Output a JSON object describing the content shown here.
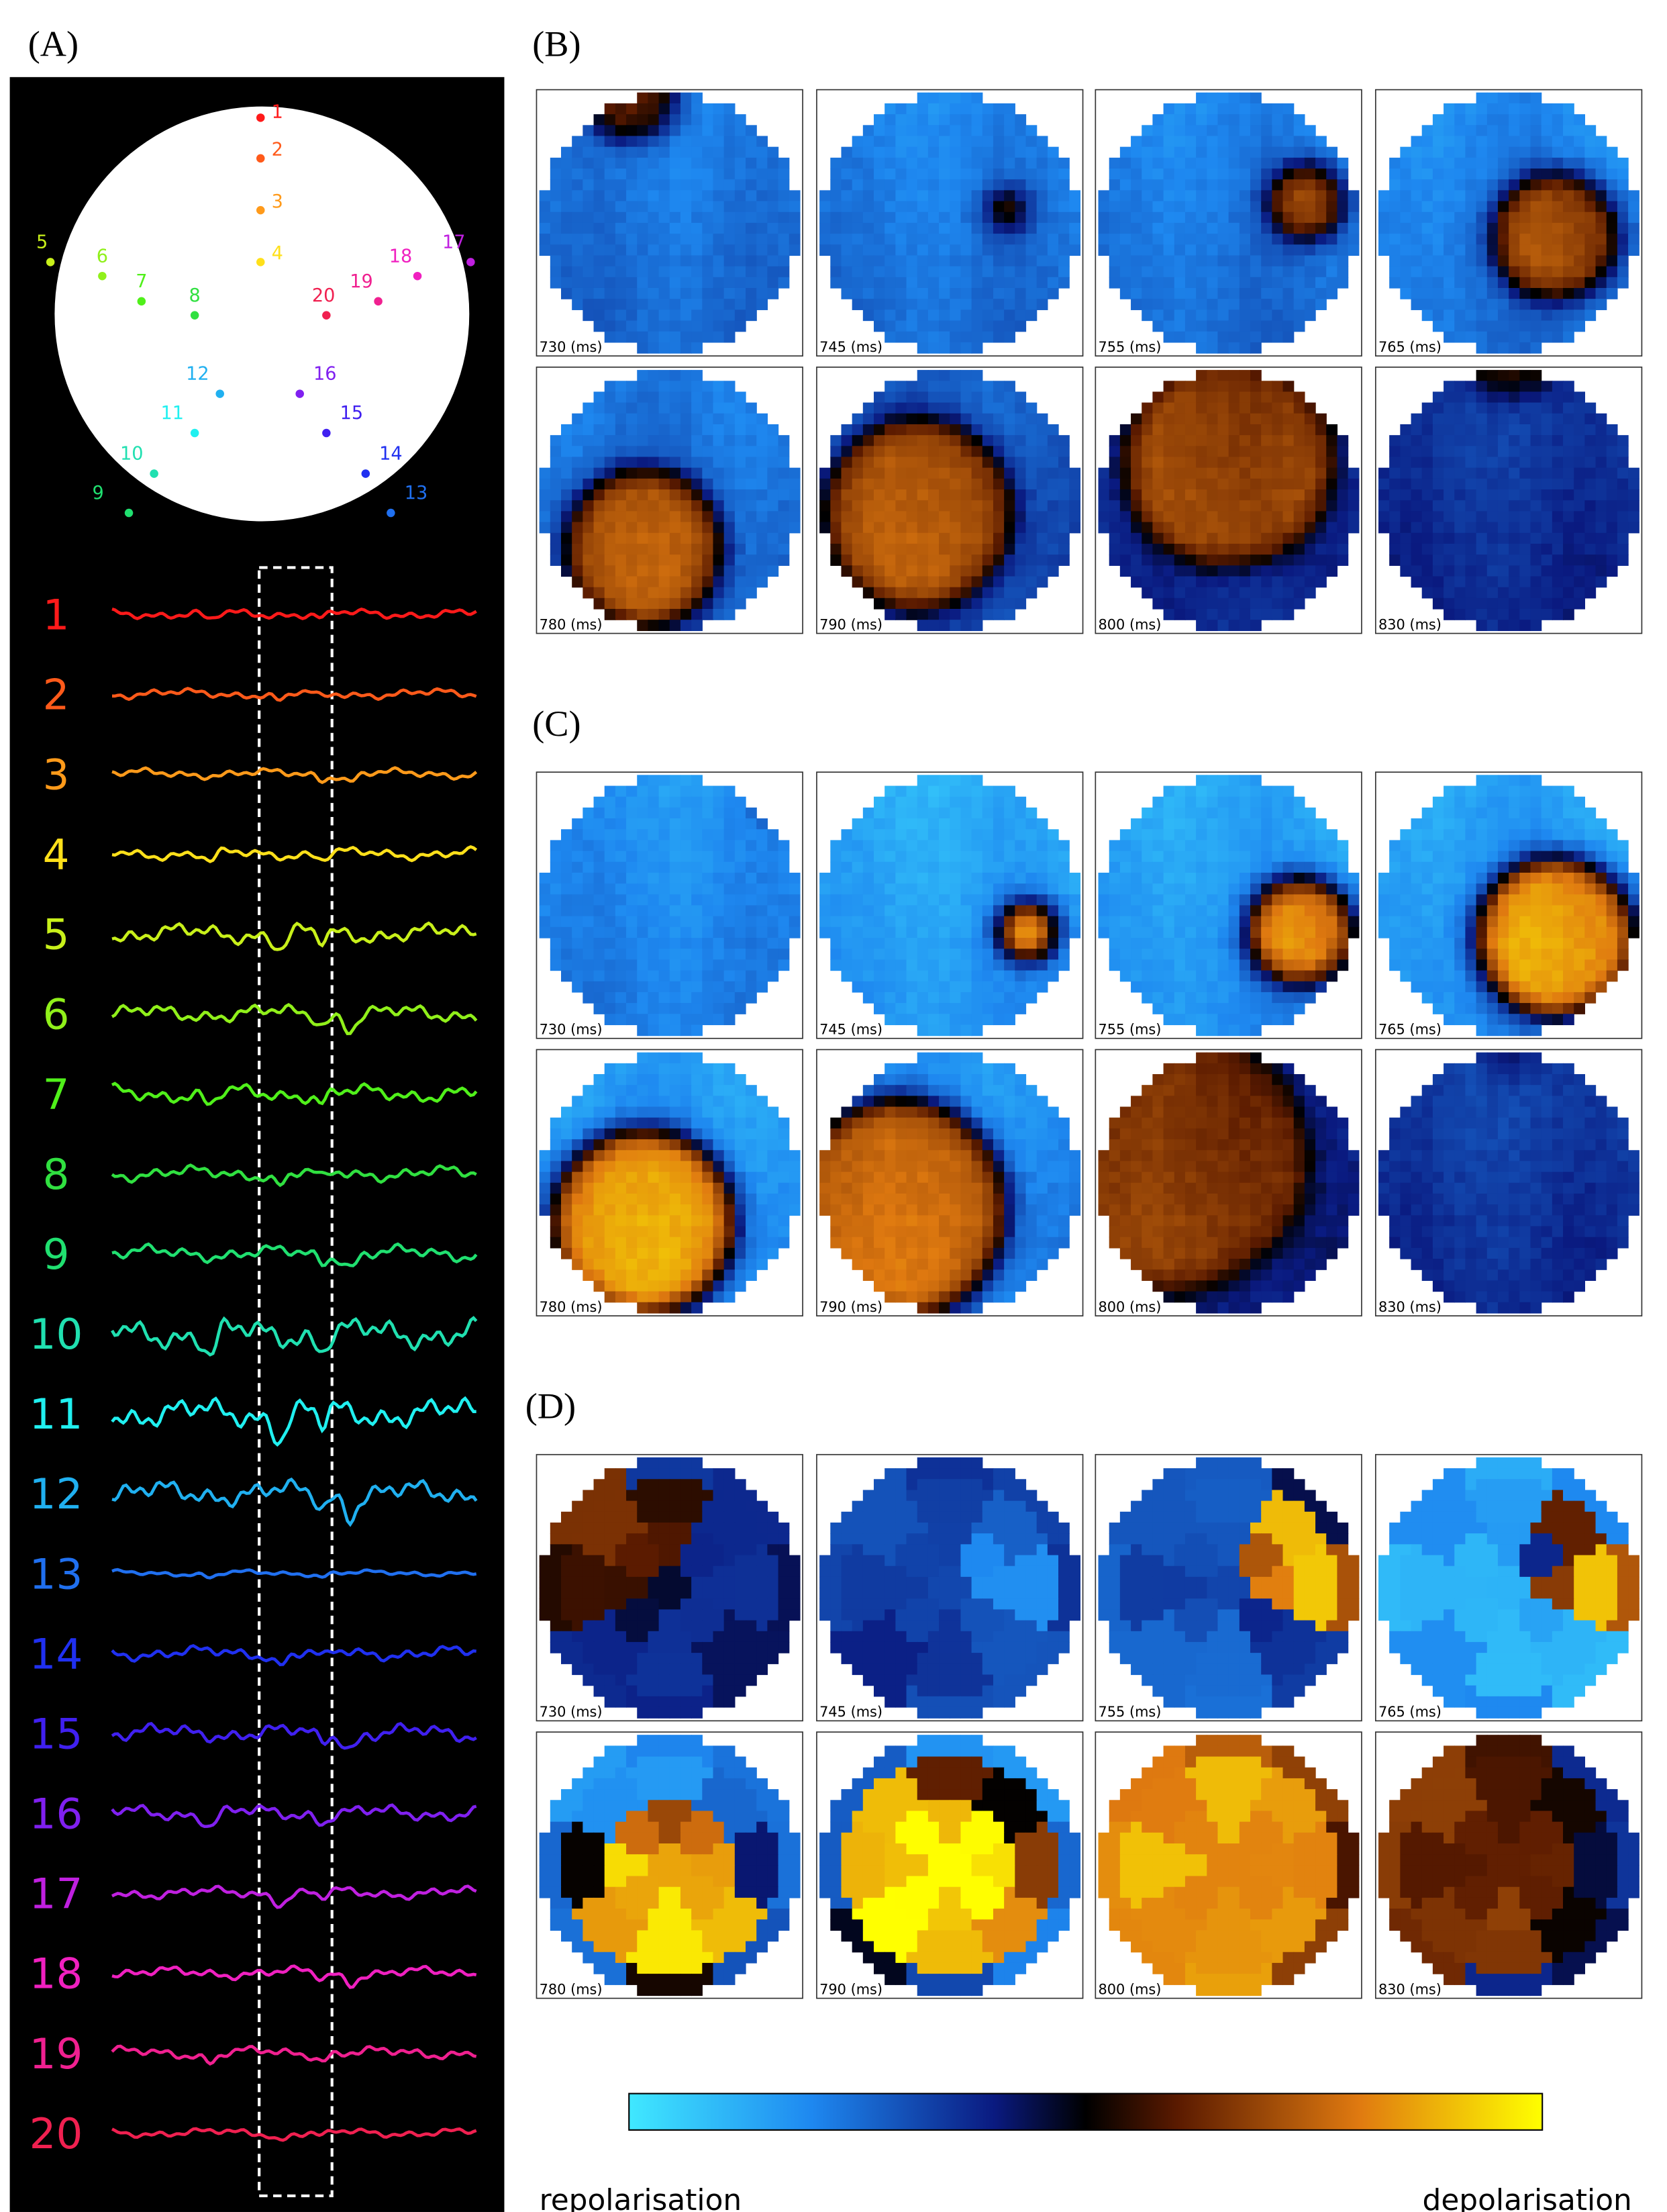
{
  "panel_labels": [
    "(A)",
    "(B)",
    "(C)",
    "(D)"
  ],
  "electrodes": [
    {
      "label": "1",
      "color": "#ff1a1a"
    },
    {
      "label": "2",
      "color": "#ff5a1a"
    },
    {
      "label": "3",
      "color": "#ff9a1a"
    },
    {
      "label": "4",
      "color": "#ffe01a"
    },
    {
      "label": "5",
      "color": "#c8f01a"
    },
    {
      "label": "6",
      "color": "#90f01a"
    },
    {
      "label": "7",
      "color": "#50f01a"
    },
    {
      "label": "8",
      "color": "#30e040"
    },
    {
      "label": "9",
      "color": "#20e070"
    },
    {
      "label": "10",
      "color": "#20e0b0"
    },
    {
      "label": "11",
      "color": "#20f0f0"
    },
    {
      "label": "12",
      "color": "#20b0f0"
    },
    {
      "label": "13",
      "color": "#2070f0"
    },
    {
      "label": "14",
      "color": "#2030f0"
    },
    {
      "label": "15",
      "color": "#4020f0"
    },
    {
      "label": "16",
      "color": "#8020f0"
    },
    {
      "label": "17",
      "color": "#c020e0"
    },
    {
      "label": "18",
      "color": "#f020c0"
    },
    {
      "label": "19",
      "color": "#f02090"
    },
    {
      "label": "20",
      "color": "#f02050"
    }
  ],
  "frame_times": [
    "730 (ms)",
    "745 (ms)",
    "755 (ms)",
    "765 (ms)",
    "780 (ms)",
    "790 (ms)",
    "800 (ms)",
    "830 (ms)"
  ],
  "colorbar": {
    "left_label": "repolarisation",
    "right_label": "depolarisation"
  }
}
